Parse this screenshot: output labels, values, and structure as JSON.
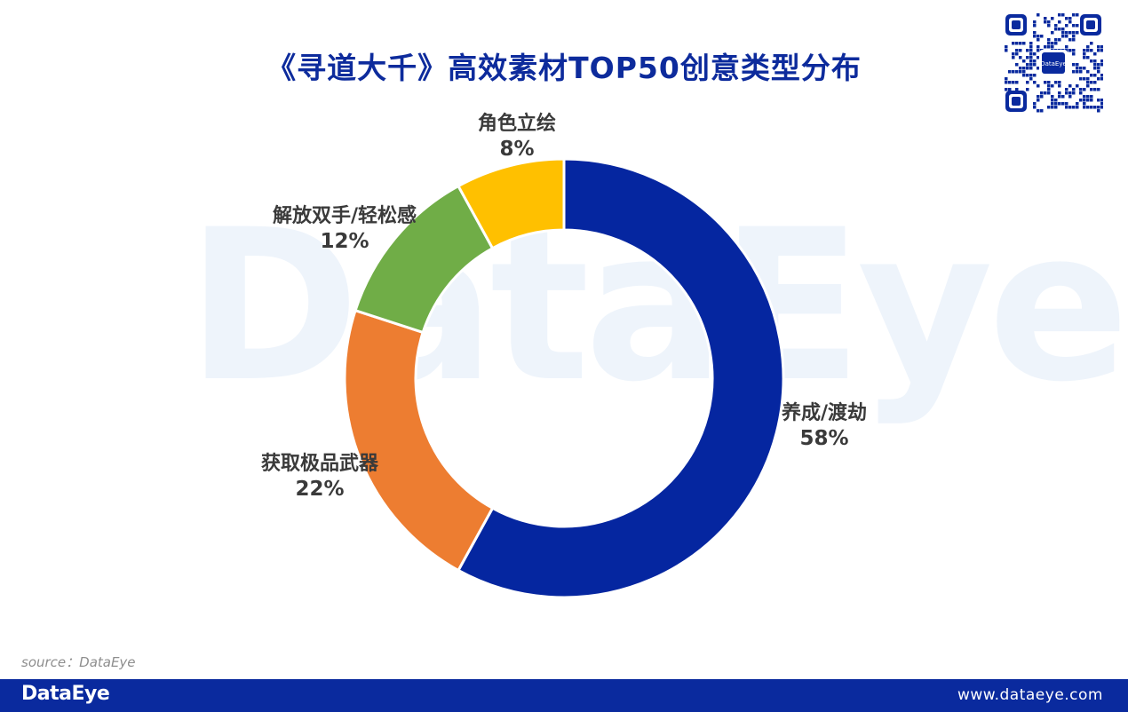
{
  "chart_data": {
    "type": "pie",
    "title": "《寻道大千》高效素材TOP50创意类型分布",
    "categories": [
      "养成/渡劫",
      "获取极品武器",
      "解放双手/轻松感",
      "角色立绘"
    ],
    "values": [
      58,
      22,
      12,
      8
    ],
    "labels": [
      "58%",
      "22%",
      "12%",
      "8%"
    ],
    "colors": [
      "#0526A0",
      "#ED7D31",
      "#70AD47",
      "#FFC000"
    ],
    "donut": true,
    "legend": "none"
  },
  "watermark": "DataEye",
  "source": "source：DataEye",
  "footer": {
    "logo": "DataEye",
    "url": "www.dataeye.com"
  },
  "qr": {
    "icon": "qr-code-icon",
    "badge": "DataEye"
  }
}
